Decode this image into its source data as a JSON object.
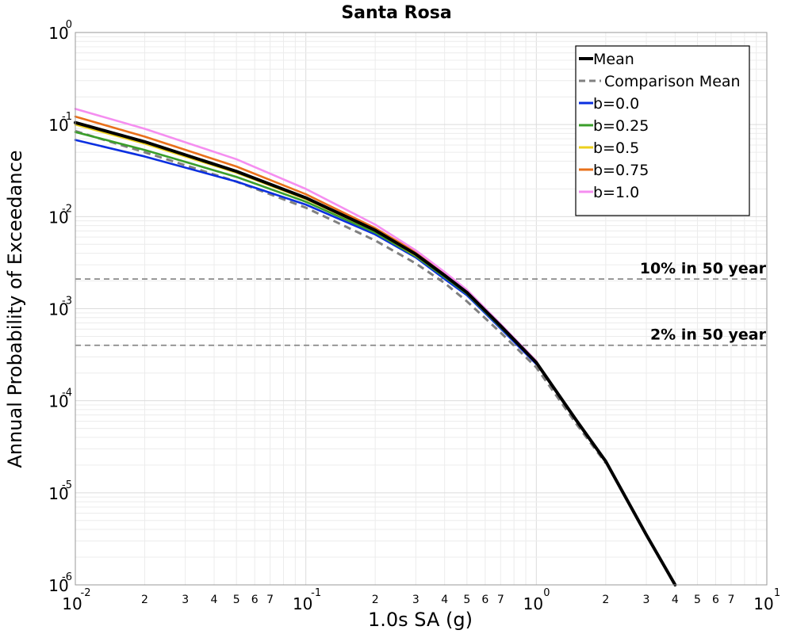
{
  "chart_data": {
    "type": "line",
    "title": "Santa Rosa",
    "xlabel": "1.0s SA (g)",
    "ylabel": "Annual Probability of Exceedance",
    "xscale": "log",
    "yscale": "log",
    "xlim": [
      0.01,
      10
    ],
    "ylim": [
      1e-06,
      1
    ],
    "grid": true,
    "legend_position": "top-right",
    "x_major_ticks": [
      {
        "base": "10",
        "exp": "-2"
      },
      {
        "base": "10",
        "exp": "-1"
      },
      {
        "base": "10",
        "exp": "0"
      },
      {
        "base": "10",
        "exp": "1"
      }
    ],
    "y_major_ticks": [
      {
        "base": "10",
        "exp": "0"
      },
      {
        "base": "10",
        "exp": "-1"
      },
      {
        "base": "10",
        "exp": "-2"
      },
      {
        "base": "10",
        "exp": "-3"
      },
      {
        "base": "10",
        "exp": "-4"
      },
      {
        "base": "10",
        "exp": "-5"
      },
      {
        "base": "10",
        "exp": "-6"
      }
    ],
    "x_minor_tick_labels": [
      "2",
      "3",
      "4",
      "5",
      "6",
      "7"
    ],
    "reference_lines": [
      {
        "label": "10% in 50 year",
        "y": 0.0021,
        "color": "#808080"
      },
      {
        "label": "2% in 50 year",
        "y": 0.0004,
        "color": "#808080"
      }
    ],
    "series": [
      {
        "name": "Mean",
        "color": "#000000",
        "style": "solid",
        "weight": "heavy",
        "x": [
          0.01,
          0.02,
          0.05,
          0.1,
          0.2,
          0.3,
          0.4,
          0.5,
          0.7,
          1.0,
          1.5,
          2.0,
          3.0,
          4.0
        ],
        "y": [
          0.105,
          0.065,
          0.031,
          0.016,
          0.0071,
          0.0039,
          0.0023,
          0.0015,
          0.00065,
          0.00026,
          6e-05,
          2.2e-05,
          3.5e-06,
          1e-06
        ]
      },
      {
        "name": "Comparison Mean",
        "color": "#808080",
        "style": "dashed",
        "weight": "normal",
        "x": [
          0.01,
          0.02,
          0.05,
          0.1,
          0.2,
          0.3,
          0.4,
          0.5,
          0.7,
          1.0,
          1.5,
          2.0
        ],
        "y": [
          0.085,
          0.05,
          0.024,
          0.0125,
          0.0055,
          0.0031,
          0.0019,
          0.0012,
          0.00055,
          0.00023,
          5.5e-05,
          2.1e-05
        ]
      },
      {
        "name": "b=0.0",
        "color": "#0a2fe0",
        "style": "solid",
        "weight": "normal",
        "x": [
          0.01,
          0.02,
          0.05,
          0.1,
          0.2,
          0.3,
          0.4,
          0.5,
          0.7,
          1.0
        ],
        "y": [
          0.068,
          0.045,
          0.024,
          0.0135,
          0.0064,
          0.0036,
          0.0021,
          0.0014,
          0.00061,
          0.00025
        ]
      },
      {
        "name": "b=0.25",
        "color": "#3a9e2a",
        "style": "solid",
        "weight": "normal",
        "x": [
          0.01,
          0.02,
          0.05,
          0.1,
          0.2,
          0.3,
          0.4,
          0.5,
          0.7,
          1.0
        ],
        "y": [
          0.083,
          0.053,
          0.027,
          0.0145,
          0.0067,
          0.0037,
          0.0022,
          0.00145,
          0.00063,
          0.00026
        ]
      },
      {
        "name": "b=0.5",
        "color": "#ecd01c",
        "style": "solid",
        "weight": "normal",
        "x": [
          0.01,
          0.02,
          0.05,
          0.1,
          0.2,
          0.3,
          0.4,
          0.5,
          0.7,
          1.0
        ],
        "y": [
          0.1,
          0.062,
          0.03,
          0.0155,
          0.007,
          0.0038,
          0.0023,
          0.0015,
          0.00065,
          0.00026
        ]
      },
      {
        "name": "b=0.75",
        "color": "#e8701a",
        "style": "solid",
        "weight": "normal",
        "x": [
          0.01,
          0.02,
          0.05,
          0.1,
          0.2,
          0.3,
          0.4,
          0.5,
          0.7,
          1.0
        ],
        "y": [
          0.122,
          0.074,
          0.035,
          0.0175,
          0.0075,
          0.0041,
          0.0024,
          0.00155,
          0.00067,
          0.00027
        ]
      },
      {
        "name": "b=1.0",
        "color": "#f58ef0",
        "style": "solid",
        "weight": "normal",
        "x": [
          0.01,
          0.02,
          0.05,
          0.1,
          0.2,
          0.3,
          0.4,
          0.5,
          0.7,
          1.0
        ],
        "y": [
          0.148,
          0.09,
          0.042,
          0.02,
          0.0082,
          0.0043,
          0.0025,
          0.0016,
          0.00068,
          0.00027
        ]
      }
    ]
  }
}
